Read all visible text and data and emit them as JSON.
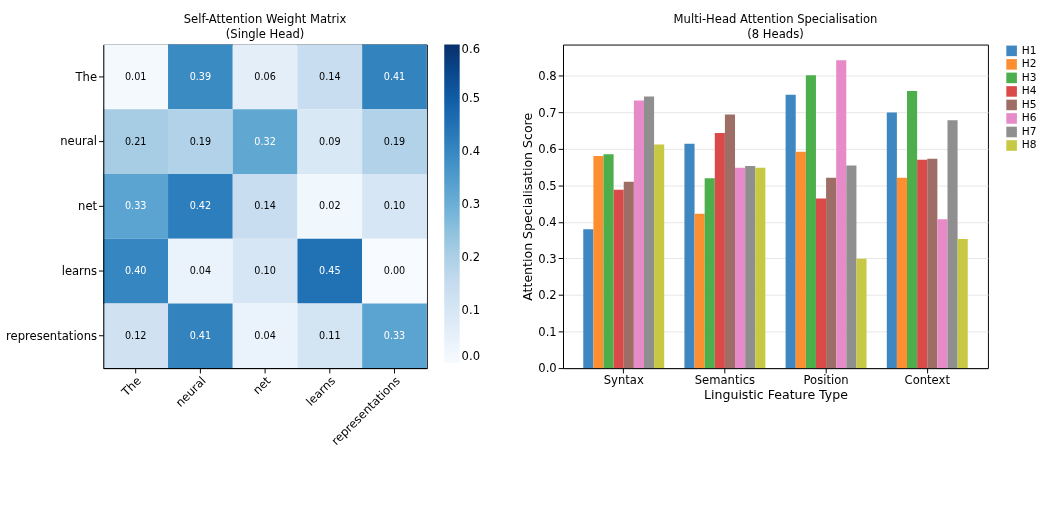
{
  "chart_data": [
    {
      "type": "heatmap",
      "title": "Self-Attention Weight Matrix",
      "subtitle": "(Single Head)",
      "categories": [
        "The",
        "neural",
        "net",
        "learns",
        "representations"
      ],
      "y_categories": [
        "The",
        "neural",
        "net",
        "learns",
        "representations"
      ],
      "cells": [
        [
          0.01,
          0.39,
          0.06,
          0.14,
          0.41
        ],
        [
          0.21,
          0.19,
          0.32,
          0.09,
          0.19
        ],
        [
          0.33,
          0.42,
          0.14,
          0.02,
          0.1
        ],
        [
          0.4,
          0.04,
          0.1,
          0.45,
          0.0
        ],
        [
          0.12,
          0.41,
          0.04,
          0.11,
          0.33
        ]
      ],
      "cell_labels": [
        [
          "0.01",
          "0.39",
          "0.06",
          "0.14",
          "0.41"
        ],
        [
          "0.21",
          "0.19",
          "0.32",
          "0.09",
          "0.19"
        ],
        [
          "0.33",
          "0.42",
          "0.14",
          "0.02",
          "0.10"
        ],
        [
          "0.40",
          "0.04",
          "0.10",
          "0.45",
          "0.00"
        ],
        [
          "0.12",
          "0.41",
          "0.04",
          "0.11",
          "0.33"
        ]
      ],
      "clim": [
        0,
        0.6
      ],
      "cticks": [
        {
          "value": 0,
          "label": "0.0"
        },
        0.1,
        0.2,
        0.3,
        0.4,
        0.5,
        0.6
      ]
    },
    {
      "type": "bar",
      "title": "Multi-Head Attention Specialisation",
      "subtitle": "(8 Heads)",
      "xlabel": "Linguistic Feature Type",
      "ylabel": "Attention Specialisation Score",
      "categories": [
        "Syntax",
        "Semantics",
        "Position",
        "Context"
      ],
      "series": [
        {
          "name": "H1",
          "color": "#3f87c0",
          "values": [
            0.38,
            0.614,
            0.748,
            0.699
          ]
        },
        {
          "name": "H2",
          "color": "#fd8f30",
          "values": [
            0.58,
            0.422,
            0.592,
            0.521
          ]
        },
        {
          "name": "H3",
          "color": "#4caf4c",
          "values": [
            0.585,
            0.519,
            0.801,
            0.758
          ]
        },
        {
          "name": "H4",
          "color": "#da4a48",
          "values": [
            0.488,
            0.643,
            0.464,
            0.57
          ]
        },
        {
          "name": "H5",
          "color": "#9e6e66",
          "values": [
            0.51,
            0.694,
            0.521,
            0.573
          ]
        },
        {
          "name": "H6",
          "color": "#e78ac8",
          "values": [
            0.732,
            0.548,
            0.842,
            0.407
          ]
        },
        {
          "name": "H7",
          "color": "#8f8f8f",
          "values": [
            0.743,
            0.553,
            0.554,
            0.678
          ]
        },
        {
          "name": "H8",
          "color": "#c7c843",
          "values": [
            0.612,
            0.548,
            0.299,
            0.353
          ]
        }
      ],
      "ylim": [
        0,
        0.885
      ],
      "yticks": [
        {
          "value": 0,
          "label": "0.0"
        },
        0.1,
        0.2,
        0.3,
        0.4,
        0.5,
        0.6,
        0.7,
        0.8
      ],
      "grid": "y",
      "legend": "right"
    }
  ]
}
